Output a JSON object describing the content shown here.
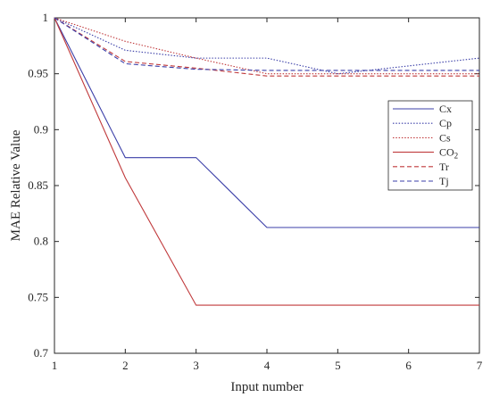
{
  "chart_data": {
    "type": "line",
    "xlabel": "Input number",
    "ylabel": "MAE Relative Value",
    "xlim": [
      1,
      7
    ],
    "ylim": [
      0.7,
      1
    ],
    "xticks": [
      "1",
      "2",
      "3",
      "4",
      "5",
      "6",
      "7"
    ],
    "yticks": [
      "0.7",
      "0.75",
      "0.8",
      "0.85",
      "0.9",
      "0.95",
      "1"
    ],
    "grid": false,
    "legend_position": "right",
    "x": [
      1,
      2,
      3,
      4,
      5,
      6,
      7
    ],
    "series": [
      {
        "name": "Cx",
        "name_main": "Cx",
        "name_sub": "",
        "color": "#3b3fa8",
        "dash": "solid",
        "values": [
          1,
          0.875,
          0.875,
          0.8125,
          0.8125,
          0.8125,
          0.8125
        ]
      },
      {
        "name": "Cp",
        "name_main": "Cp",
        "name_sub": "",
        "color": "#3b3fa8",
        "dash": "dotted",
        "values": [
          1,
          0.971,
          0.964,
          0.964,
          0.95,
          0.957,
          0.964
        ]
      },
      {
        "name": "Cs",
        "name_main": "Cs",
        "name_sub": "",
        "color": "#c0393b",
        "dash": "dotted",
        "values": [
          1,
          0.979,
          0.964,
          0.95,
          0.95,
          0.95,
          0.95
        ]
      },
      {
        "name": "CO2",
        "name_main": "CO",
        "name_sub": "2",
        "color": "#c0393b",
        "dash": "solid",
        "values": [
          1,
          0.857,
          0.743,
          0.743,
          0.743,
          0.743,
          0.743
        ]
      },
      {
        "name": "Tr",
        "name_main": "Tr",
        "name_sub": "",
        "color": "#c0393b",
        "dash": "dashed",
        "values": [
          1,
          0.961,
          0.955,
          0.948,
          0.948,
          0.948,
          0.948
        ]
      },
      {
        "name": "Tj",
        "name_main": "Tj",
        "name_sub": "",
        "color": "#3b3fa8",
        "dash": "dashed",
        "values": [
          1,
          0.959,
          0.954,
          0.953,
          0.953,
          0.953,
          0.953
        ]
      }
    ]
  }
}
